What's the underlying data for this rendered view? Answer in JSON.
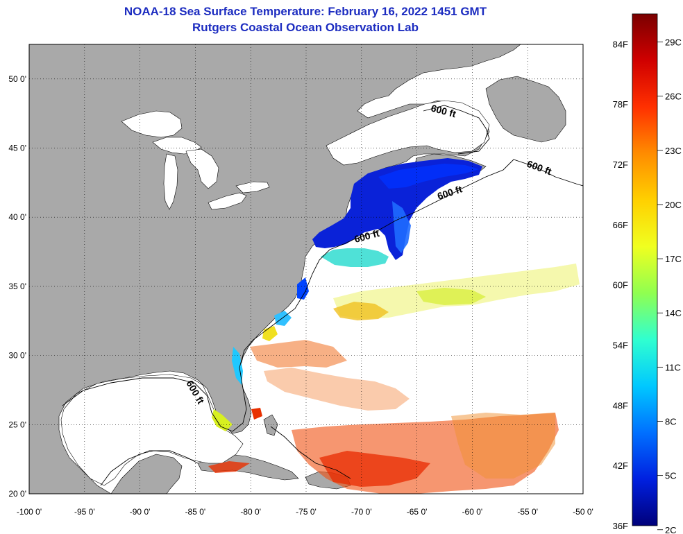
{
  "title": "NOAA-18 Sea Surface Temperature:  February 16, 2022 1451 GMT",
  "subtitle": "Rutgers Coastal Ocean Observation Lab",
  "map": {
    "x_ticks": [
      "-100 0'",
      "-95 0'",
      "-90 0'",
      "-85 0'",
      "-80 0'",
      "-75 0'",
      "-70 0'",
      "-65 0'",
      "-60 0'",
      "-55 0'",
      "-50 0'"
    ],
    "y_ticks": [
      "20 0'",
      "25 0'",
      "30 0'",
      "35 0'",
      "40 0'",
      "45 0'",
      "50 0'"
    ],
    "lon_range": [
      -100,
      -50
    ],
    "lat_range": [
      20,
      52.5
    ],
    "isobath_labels": [
      "600 ft",
      "600 ft",
      "600 ft",
      "600 ft",
      "600 ft"
    ],
    "land_color": "#a9a9a9",
    "ocean_color": "#ffffff"
  },
  "colorbar": {
    "f_labels": [
      "84F",
      "78F",
      "72F",
      "66F",
      "60F",
      "54F",
      "48F",
      "42F",
      "36F"
    ],
    "c_labels": [
      "29C",
      "26C",
      "23C",
      "20C",
      "17C",
      "14C",
      "11C",
      "8C",
      "5C",
      "2C"
    ],
    "colors": [
      "#7a0000",
      "#d00000",
      "#ff3000",
      "#ff8c00",
      "#ffd000",
      "#f0ff20",
      "#90ff50",
      "#30ffd0",
      "#00c8ff",
      "#0070ff",
      "#0020e0",
      "#00007a"
    ]
  }
}
